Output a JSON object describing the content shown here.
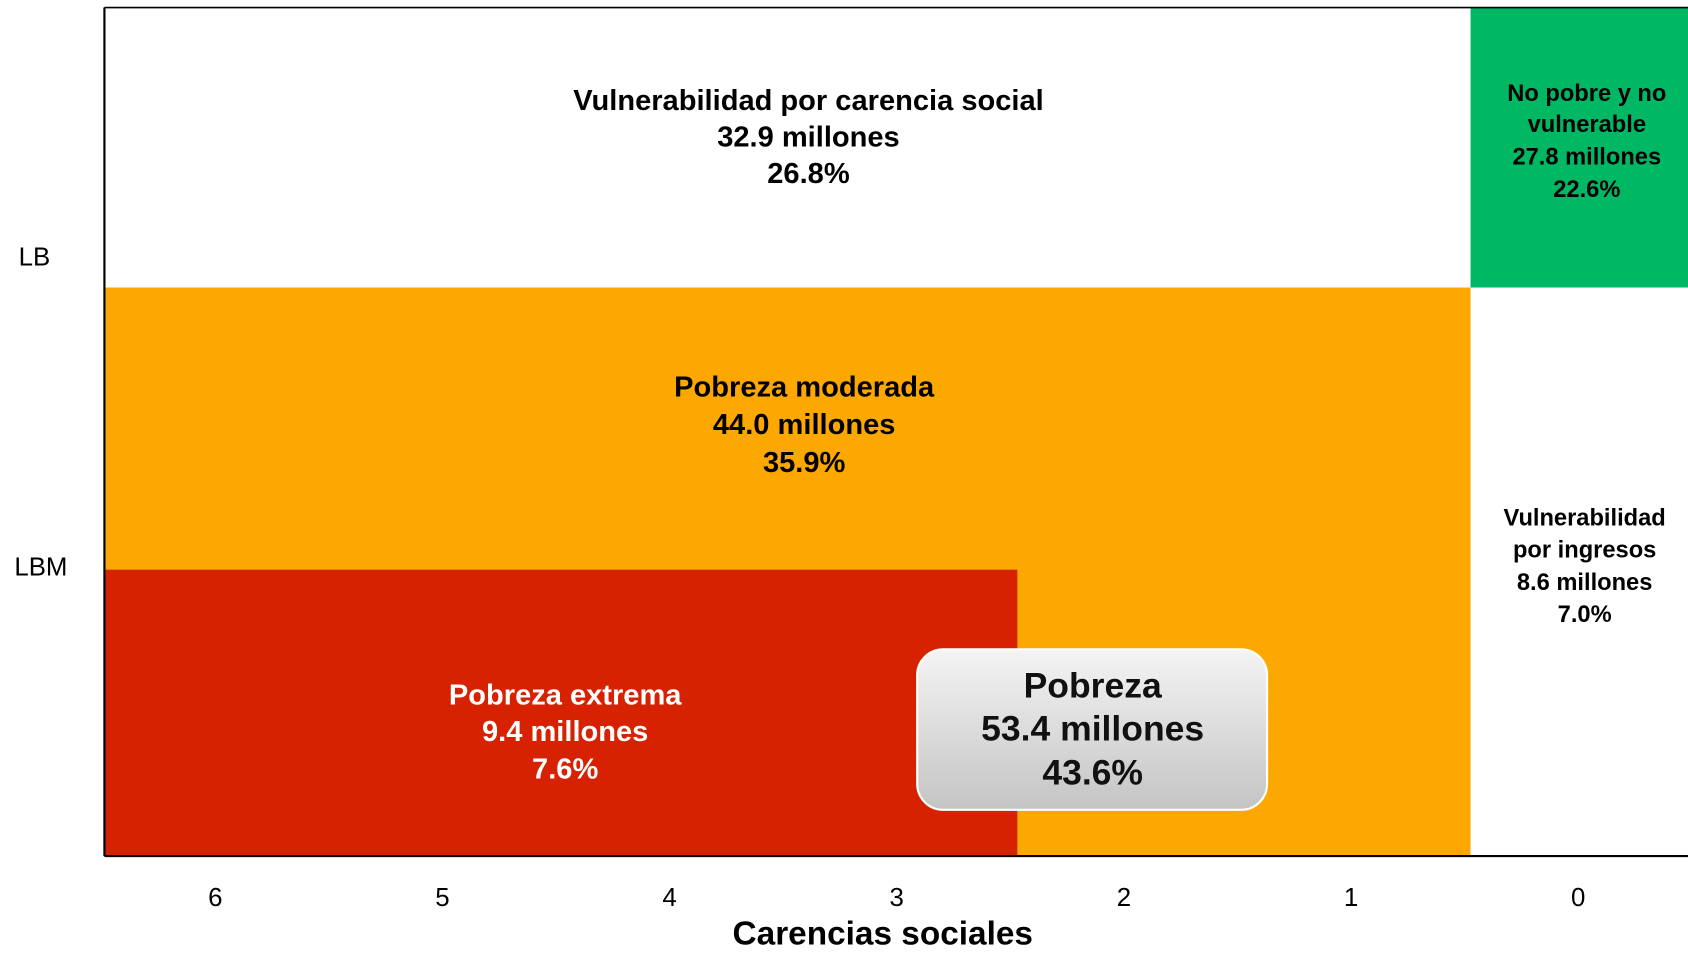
{
  "y_labels": [
    "LB",
    "LBM"
  ],
  "x_axis": {
    "title": "Carencias sociales",
    "ticks": [
      "6",
      "5",
      "4",
      "3",
      "2",
      "1",
      "0"
    ]
  },
  "regions": [
    {
      "lines": [
        "Vulnerabilidad por carencia social",
        "32.9 millones",
        "26.8%"
      ]
    },
    {
      "lines": [
        "No pobre y no",
        "vulnerable",
        "27.8 millones",
        "22.6%"
      ]
    },
    {
      "lines": [
        "Pobreza moderada",
        "44.0 millones",
        "35.9%"
      ]
    },
    {
      "lines": [
        "Vulnerabilidad",
        "por ingresos",
        "8.6 millones",
        "7.0%"
      ]
    },
    {
      "lines": [
        "Pobreza extrema",
        "9.4 millones",
        "7.6%"
      ]
    }
  ],
  "callout": {
    "lines": [
      "Pobreza",
      "53.4 millones",
      "43.6%"
    ]
  }
}
